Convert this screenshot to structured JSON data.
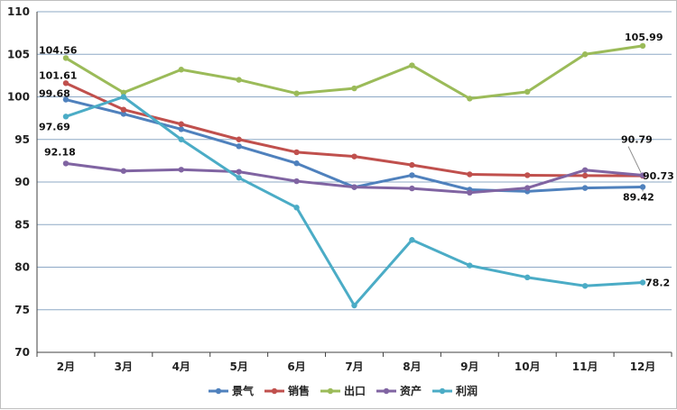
{
  "chart_data": {
    "type": "line",
    "categories": [
      "2月",
      "3月",
      "4月",
      "5月",
      "6月",
      "7月",
      "8月",
      "9月",
      "10月",
      "11月",
      "12月"
    ],
    "ylim": [
      70,
      110
    ],
    "yticks": [
      70,
      75,
      80,
      85,
      90,
      95,
      100,
      105,
      110
    ],
    "grid": true,
    "legend_position": "bottom",
    "series": [
      {
        "name": "景气",
        "color": "#4f81bd",
        "values": [
          99.68,
          98.0,
          96.2,
          94.2,
          92.2,
          89.4,
          90.8,
          89.1,
          88.9,
          89.3,
          89.42
        ]
      },
      {
        "name": "销售",
        "color": "#c0504d",
        "values": [
          101.61,
          98.5,
          96.8,
          95.0,
          93.5,
          93.0,
          92.0,
          90.9,
          90.8,
          90.75,
          90.73
        ]
      },
      {
        "name": "出口",
        "color": "#9bbb59",
        "values": [
          104.56,
          100.5,
          103.2,
          102.0,
          100.4,
          101.0,
          103.7,
          99.8,
          100.6,
          105.0,
          105.99
        ]
      },
      {
        "name": "资产",
        "color": "#8064a2",
        "values": [
          92.18,
          91.3,
          91.45,
          91.2,
          90.1,
          89.4,
          89.25,
          88.75,
          89.3,
          91.4,
          90.79
        ]
      },
      {
        "name": "利润",
        "color": "#4bacc6",
        "values": [
          97.69,
          100.0,
          95.0,
          90.5,
          87.0,
          75.5,
          83.2,
          80.2,
          78.8,
          77.8,
          78.2
        ]
      }
    ],
    "data_labels": [
      {
        "series": "出口",
        "index": 0,
        "text": "104.56"
      },
      {
        "series": "销售",
        "index": 0,
        "text": "101.61"
      },
      {
        "series": "景气",
        "index": 0,
        "text": "99.68"
      },
      {
        "series": "利润",
        "index": 0,
        "text": "97.69"
      },
      {
        "series": "资产",
        "index": 0,
        "text": "92.18"
      },
      {
        "series": "出口",
        "index": 10,
        "text": "105.99"
      },
      {
        "series": "资产",
        "index": 10,
        "text": "90.79"
      },
      {
        "series": "销售",
        "index": 10,
        "text": "90.73"
      },
      {
        "series": "景气",
        "index": 10,
        "text": "89.42"
      },
      {
        "series": "利润",
        "index": 10,
        "text": "78.2"
      }
    ]
  }
}
